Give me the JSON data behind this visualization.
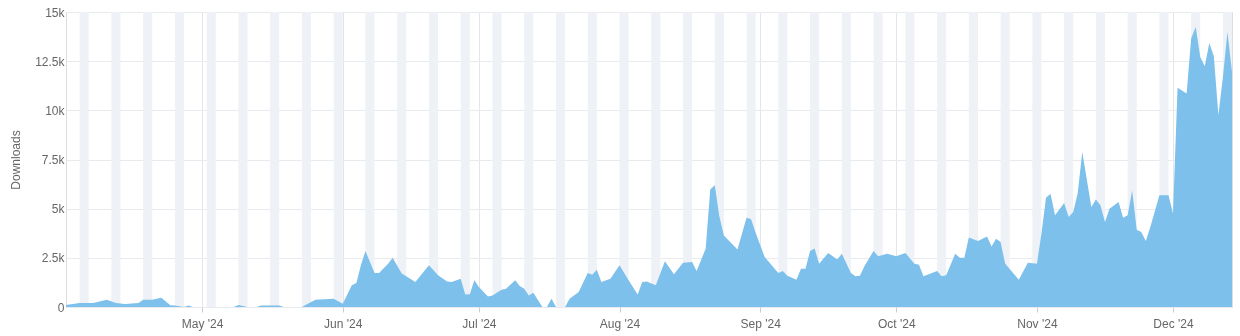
{
  "chart_data": {
    "type": "area",
    "ylabel": "Downloads",
    "x": [
      "2024-04-01",
      "2024-04-04",
      "2024-04-07",
      "2024-04-10",
      "2024-04-12",
      "2024-04-14",
      "2024-04-17",
      "2024-04-18",
      "2024-04-20",
      "2024-04-22",
      "2024-04-24",
      "2024-04-25",
      "2024-04-27",
      "2024-04-28",
      "2024-04-29",
      "2024-05-05",
      "2024-05-08",
      "2024-05-09",
      "2024-05-11",
      "2024-05-13",
      "2024-05-14",
      "2024-05-18",
      "2024-05-19",
      "2024-05-23",
      "2024-05-25",
      "2024-05-26",
      "2024-05-30",
      "2024-06-01",
      "2024-06-03",
      "2024-06-04",
      "2024-06-05",
      "2024-06-06",
      "2024-06-08",
      "2024-06-09",
      "2024-06-11",
      "2024-06-12",
      "2024-06-14",
      "2024-06-15",
      "2024-06-17",
      "2024-06-20",
      "2024-06-22",
      "2024-06-24",
      "2024-06-25",
      "2024-06-27",
      "2024-06-28",
      "2024-06-29",
      "2024-06-30",
      "2024-07-01",
      "2024-07-03",
      "2024-07-04",
      "2024-07-06",
      "2024-07-07",
      "2024-07-09",
      "2024-07-10",
      "2024-07-11",
      "2024-07-12",
      "2024-07-13",
      "2024-07-15",
      "2024-07-16",
      "2024-07-17",
      "2024-07-18",
      "2024-07-20",
      "2024-07-21",
      "2024-07-23",
      "2024-07-25",
      "2024-07-26",
      "2024-07-27",
      "2024-07-28",
      "2024-07-30",
      "2024-08-01",
      "2024-08-03",
      "2024-08-05",
      "2024-08-06",
      "2024-08-07",
      "2024-08-09",
      "2024-08-11",
      "2024-08-13",
      "2024-08-15",
      "2024-08-17",
      "2024-08-18",
      "2024-08-20",
      "2024-08-21",
      "2024-08-22",
      "2024-08-23",
      "2024-08-24",
      "2024-08-27",
      "2024-08-29",
      "2024-08-30",
      "2024-08-31",
      "2024-09-02",
      "2024-09-05",
      "2024-09-06",
      "2024-09-07",
      "2024-09-09",
      "2024-09-10",
      "2024-09-11",
      "2024-09-12",
      "2024-09-13",
      "2024-09-14",
      "2024-09-16",
      "2024-09-18",
      "2024-09-19",
      "2024-09-21",
      "2024-09-22",
      "2024-09-23",
      "2024-09-24",
      "2024-09-26",
      "2024-09-27",
      "2024-09-29",
      "2024-10-01",
      "2024-10-03",
      "2024-10-05",
      "2024-10-06",
      "2024-10-07",
      "2024-10-10",
      "2024-10-11",
      "2024-10-12",
      "2024-10-14",
      "2024-10-15",
      "2024-10-16",
      "2024-10-17",
      "2024-10-19",
      "2024-10-21",
      "2024-10-22",
      "2024-10-23",
      "2024-10-24",
      "2024-10-25",
      "2024-10-28",
      "2024-10-30",
      "2024-11-01",
      "2024-11-02",
      "2024-11-03",
      "2024-11-04",
      "2024-11-05",
      "2024-11-07",
      "2024-11-08",
      "2024-11-09",
      "2024-11-10",
      "2024-11-11",
      "2024-11-13",
      "2024-11-14",
      "2024-11-15",
      "2024-11-16",
      "2024-11-17",
      "2024-11-19",
      "2024-11-20",
      "2024-11-21",
      "2024-11-22",
      "2024-11-23",
      "2024-11-24",
      "2024-11-25",
      "2024-11-26",
      "2024-11-28",
      "2024-11-30",
      "2024-12-01",
      "2024-12-02",
      "2024-12-04",
      "2024-12-05",
      "2024-12-06",
      "2024-12-07",
      "2024-12-08",
      "2024-12-09",
      "2024-12-10",
      "2024-12-11",
      "2024-12-12",
      "2024-12-13",
      "2024-12-14"
    ],
    "series": [
      {
        "color": "#7cc0eb",
        "values": [
          100,
          200,
          200,
          370,
          200,
          150,
          200,
          370,
          370,
          475,
          85,
          70,
          0,
          80,
          0,
          0,
          0,
          100,
          0,
          0,
          70,
          70,
          0,
          0,
          250,
          370,
          420,
          170,
          1100,
          1220,
          2120,
          2850,
          1730,
          1730,
          2200,
          2500,
          1700,
          1560,
          1270,
          2120,
          1610,
          1300,
          1270,
          1440,
          630,
          650,
          1360,
          1020,
          540,
          590,
          880,
          930,
          1360,
          1070,
          930,
          590,
          730,
          0,
          0,
          420,
          0,
          0,
          420,
          760,
          1730,
          1640,
          1900,
          1270,
          1440,
          2120,
          1360,
          630,
          1270,
          1300,
          1100,
          2320,
          1660,
          2250,
          2290,
          1830,
          2970,
          5980,
          6190,
          4610,
          3640,
          2930,
          4540,
          4460,
          3780,
          2540,
          1730,
          1830,
          1590,
          1390,
          1950,
          1950,
          2850,
          2970,
          2200,
          2750,
          2410,
          2710,
          1730,
          1560,
          1590,
          2080,
          2850,
          2580,
          2710,
          2580,
          2750,
          2200,
          2150,
          1560,
          1830,
          1560,
          1610,
          2710,
          2500,
          2500,
          3530,
          3360,
          3590,
          3080,
          3470,
          3300,
          2200,
          1390,
          2250,
          2200,
          3730,
          5560,
          5760,
          4660,
          5290,
          4580,
          4830,
          5800,
          7880,
          5090,
          5460,
          5170,
          4320,
          5000,
          5340,
          4540,
          4660,
          5930,
          3930,
          3810,
          3360,
          4070,
          5680,
          5680,
          4750,
          11150,
          10850,
          13650,
          14240,
          12710,
          12240,
          13420,
          12750,
          9750,
          11700,
          13980,
          11950
        ]
      }
    ],
    "xlim": [
      "2024-04-01",
      "2024-12-14"
    ],
    "xticks": [
      {
        "value": "2024-05-01",
        "label": "May '24"
      },
      {
        "value": "2024-06-01",
        "label": "Jun '24"
      },
      {
        "value": "2024-07-01",
        "label": "Jul '24"
      },
      {
        "value": "2024-08-01",
        "label": "Aug '24"
      },
      {
        "value": "2024-09-01",
        "label": "Sep '24"
      },
      {
        "value": "2024-10-01",
        "label": "Oct '24"
      },
      {
        "value": "2024-11-01",
        "label": "Nov '24"
      },
      {
        "value": "2024-12-01",
        "label": "Dec '24"
      }
    ],
    "ylim": [
      0,
      15000
    ],
    "yticks": [
      0,
      {
        "value": 2500,
        "label": "2.5k"
      },
      {
        "value": 5000,
        "label": "5k"
      },
      {
        "value": 7500,
        "label": "7.5k"
      },
      {
        "value": 10000,
        "label": "10k"
      },
      {
        "value": 12500,
        "label": "12.5k"
      },
      {
        "value": 15000,
        "label": "15k"
      }
    ],
    "grid": true,
    "bands": [
      {
        "axis": "x",
        "from": "2024-04-04",
        "to": "2024-04-06",
        "color": "#eef1f5"
      },
      {
        "axis": "x",
        "from": "2024-04-11",
        "to": "2024-04-13",
        "color": "#eef1f5"
      },
      {
        "axis": "x",
        "from": "2024-04-18",
        "to": "2024-04-20",
        "color": "#eef1f5"
      },
      {
        "axis": "x",
        "from": "2024-04-25",
        "to": "2024-04-27",
        "color": "#eef1f5"
      },
      {
        "axis": "x",
        "from": "2024-05-02",
        "to": "2024-05-04",
        "color": "#eef1f5"
      },
      {
        "axis": "x",
        "from": "2024-05-09",
        "to": "2024-05-11",
        "color": "#eef1f5"
      },
      {
        "axis": "x",
        "from": "2024-05-16",
        "to": "2024-05-18",
        "color": "#eef1f5"
      },
      {
        "axis": "x",
        "from": "2024-05-23",
        "to": "2024-05-25",
        "color": "#eef1f5"
      },
      {
        "axis": "x",
        "from": "2024-05-30",
        "to": "2024-06-01",
        "color": "#eef1f5"
      },
      {
        "axis": "x",
        "from": "2024-06-06",
        "to": "2024-06-08",
        "color": "#eef1f5"
      },
      {
        "axis": "x",
        "from": "2024-06-13",
        "to": "2024-06-15",
        "color": "#eef1f5"
      },
      {
        "axis": "x",
        "from": "2024-06-20",
        "to": "2024-06-22",
        "color": "#eef1f5"
      },
      {
        "axis": "x",
        "from": "2024-06-27",
        "to": "2024-06-29",
        "color": "#eef1f5"
      },
      {
        "axis": "x",
        "from": "2024-07-04",
        "to": "2024-07-06",
        "color": "#eef1f5"
      },
      {
        "axis": "x",
        "from": "2024-07-11",
        "to": "2024-07-13",
        "color": "#eef1f5"
      },
      {
        "axis": "x",
        "from": "2024-07-18",
        "to": "2024-07-20",
        "color": "#eef1f5"
      },
      {
        "axis": "x",
        "from": "2024-07-25",
        "to": "2024-07-27",
        "color": "#eef1f5"
      },
      {
        "axis": "x",
        "from": "2024-08-01",
        "to": "2024-08-03",
        "color": "#eef1f5"
      },
      {
        "axis": "x",
        "from": "2024-08-08",
        "to": "2024-08-10",
        "color": "#eef1f5"
      },
      {
        "axis": "x",
        "from": "2024-08-15",
        "to": "2024-08-17",
        "color": "#eef1f5"
      },
      {
        "axis": "x",
        "from": "2024-08-22",
        "to": "2024-08-24",
        "color": "#eef1f5"
      },
      {
        "axis": "x",
        "from": "2024-08-29",
        "to": "2024-08-31",
        "color": "#eef1f5"
      },
      {
        "axis": "x",
        "from": "2024-09-05",
        "to": "2024-09-07",
        "color": "#eef1f5"
      },
      {
        "axis": "x",
        "from": "2024-09-12",
        "to": "2024-09-14",
        "color": "#eef1f5"
      },
      {
        "axis": "x",
        "from": "2024-09-19",
        "to": "2024-09-21",
        "color": "#eef1f5"
      },
      {
        "axis": "x",
        "from": "2024-09-26",
        "to": "2024-09-28",
        "color": "#eef1f5"
      },
      {
        "axis": "x",
        "from": "2024-10-03",
        "to": "2024-10-05",
        "color": "#eef1f5"
      },
      {
        "axis": "x",
        "from": "2024-10-10",
        "to": "2024-10-12",
        "color": "#eef1f5"
      },
      {
        "axis": "x",
        "from": "2024-10-17",
        "to": "2024-10-19",
        "color": "#eef1f5"
      },
      {
        "axis": "x",
        "from": "2024-10-24",
        "to": "2024-10-26",
        "color": "#eef1f5"
      },
      {
        "axis": "x",
        "from": "2024-10-31",
        "to": "2024-11-02",
        "color": "#eef1f5"
      },
      {
        "axis": "x",
        "from": "2024-11-07",
        "to": "2024-11-09",
        "color": "#eef1f5"
      },
      {
        "axis": "x",
        "from": "2024-11-14",
        "to": "2024-11-16",
        "color": "#eef1f5"
      },
      {
        "axis": "x",
        "from": "2024-11-21",
        "to": "2024-11-23",
        "color": "#eef1f5"
      },
      {
        "axis": "x",
        "from": "2024-11-28",
        "to": "2024-11-30",
        "color": "#eef1f5"
      },
      {
        "axis": "x",
        "from": "2024-12-05",
        "to": "2024-12-07",
        "color": "#eef1f5"
      },
      {
        "axis": "x",
        "from": "2024-12-12",
        "to": "2024-12-14",
        "color": "#eef1f5"
      }
    ]
  }
}
